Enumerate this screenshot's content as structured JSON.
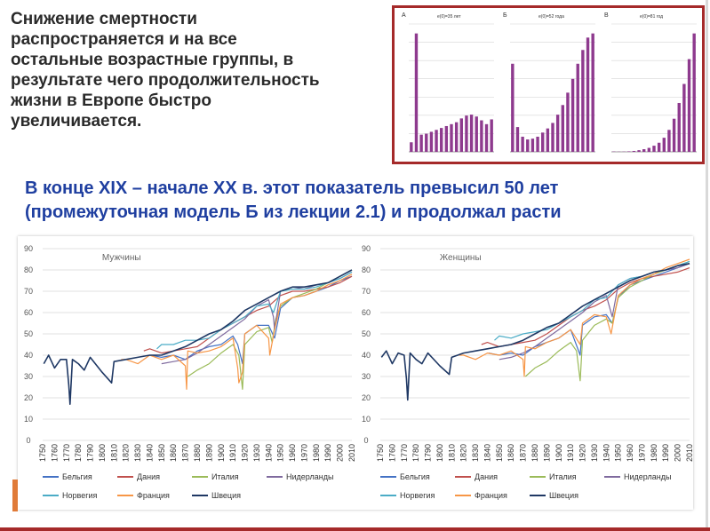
{
  "slide": {
    "heading": "Снижение смертности\nраспространяется и на все\nостальные возрастные группы, в\nрезультате чего продолжительность\nжизни в Европе быстро\nувеличивается.",
    "subheading": "В конце XIX – начале XX в. этот показатель превысил 50 лет\n(промежуточная модель Б из лекции 2.1) и продолжал расти"
  },
  "colors": {
    "inset_border": "#a52a2a",
    "bar": "#8e3a8e",
    "heading": "#2a2a2a",
    "subheading": "#1f3fa0"
  },
  "inset": {
    "panels": [
      {
        "letter": "А",
        "title": "e(0)=35 лет",
        "bars": [
          500,
          6200,
          900,
          950,
          1050,
          1150,
          1250,
          1350,
          1450,
          1550,
          1750,
          1900,
          1950,
          1850,
          1650,
          1450,
          1700
        ]
      },
      {
        "letter": "Б",
        "title": "e(0)=52 года",
        "bars": [
          3200,
          900,
          550,
          450,
          480,
          550,
          700,
          850,
          1050,
          1350,
          1700,
          2150,
          2650,
          3200,
          3700,
          4150,
          4300
        ]
      },
      {
        "letter": "В",
        "title": "e(0)=81 год",
        "bars": [
          40,
          25,
          30,
          60,
          110,
          200,
          320,
          480,
          740,
          1100,
          1700,
          2650,
          4000,
          5900,
          8200,
          11200,
          14300
        ]
      }
    ]
  },
  "chart_data": [
    {
      "type": "line",
      "title": "Мужчины",
      "xlim": [
        1750,
        2010
      ],
      "ylim": [
        0,
        90
      ],
      "y_ticks": [
        0,
        10,
        20,
        30,
        40,
        50,
        60,
        70,
        80,
        90
      ],
      "x_ticks": [
        "1750",
        "1760",
        "1770",
        "1780",
        "1790",
        "1800",
        "1810",
        "1820",
        "1830",
        "1840",
        "1850",
        "1860",
        "1870",
        "1880",
        "1890",
        "1900",
        "1910",
        "1920",
        "1930",
        "1940",
        "1950",
        "1960",
        "1970",
        "1980",
        "1990",
        "2000",
        "2010"
      ],
      "legend": [
        "Бельгия",
        "Дания",
        "Италия",
        "Нидерланды",
        "Норвегия",
        "Франция",
        "Швеция"
      ],
      "series": [
        {
          "name": "Бельгия",
          "color": "#4472c4",
          "x": [
            1841,
            1850,
            1860,
            1870,
            1880,
            1890,
            1900,
            1910,
            1914,
            1918,
            1920,
            1930,
            1940,
            1945,
            1950,
            1960,
            1970,
            1980,
            1990,
            2000,
            2010
          ],
          "y": [
            40,
            39,
            40,
            38,
            42,
            44,
            45,
            49,
            45,
            36,
            50,
            54,
            54,
            48,
            62,
            67,
            68,
            70,
            72,
            75,
            77
          ]
        },
        {
          "name": "Дания",
          "color": "#c0504d",
          "x": [
            1835,
            1840,
            1850,
            1860,
            1870,
            1880,
            1890,
            1900,
            1910,
            1920,
            1930,
            1940,
            1950,
            1960,
            1970,
            1980,
            1990,
            2000,
            2010
          ],
          "y": [
            42,
            43,
            41,
            42,
            43,
            44,
            48,
            52,
            55,
            58,
            61,
            63,
            68,
            70,
            70,
            71,
            72,
            74,
            77
          ]
        },
        {
          "name": "Италия",
          "color": "#9bbb59",
          "x": [
            1872,
            1880,
            1890,
            1900,
            1910,
            1915,
            1918,
            1920,
            1930,
            1940,
            1943,
            1946,
            1950,
            1960,
            1970,
            1980,
            1990,
            2000,
            2010
          ],
          "y": [
            30,
            33,
            36,
            41,
            45,
            40,
            24,
            45,
            51,
            53,
            46,
            57,
            63,
            67,
            69,
            71,
            74,
            77,
            80
          ]
        },
        {
          "name": "Нидерланды",
          "color": "#7f6a9e",
          "x": [
            1850,
            1860,
            1870,
            1880,
            1890,
            1900,
            1910,
            1920,
            1930,
            1940,
            1944,
            1945,
            1950,
            1960,
            1970,
            1980,
            1990,
            2000,
            2010
          ],
          "y": [
            36,
            37,
            38,
            41,
            45,
            49,
            53,
            57,
            63,
            66,
            58,
            52,
            70,
            72,
            71,
            73,
            74,
            76,
            79
          ]
        },
        {
          "name": "Норвегия",
          "color": "#4bacc6",
          "x": [
            1846,
            1850,
            1860,
            1870,
            1880,
            1890,
            1900,
            1910,
            1920,
            1930,
            1940,
            1944,
            1950,
            1960,
            1970,
            1980,
            1990,
            2000,
            2010
          ],
          "y": [
            43,
            45,
            45,
            47,
            47,
            48,
            52,
            55,
            58,
            63,
            64,
            60,
            70,
            71,
            71,
            72,
            74,
            76,
            79
          ]
        },
        {
          "name": "Франция",
          "color": "#f79646",
          "x": [
            1816,
            1820,
            1830,
            1840,
            1850,
            1860,
            1870,
            1871,
            1872,
            1880,
            1890,
            1900,
            1910,
            1914,
            1915,
            1918,
            1920,
            1930,
            1940,
            1941,
            1945,
            1950,
            1960,
            1970,
            1980,
            1990,
            2000,
            2010
          ],
          "y": [
            38,
            38,
            36,
            40,
            38,
            40,
            35,
            24,
            42,
            41,
            42,
            44,
            48,
            34,
            27,
            32,
            50,
            54,
            48,
            40,
            52,
            64,
            67,
            68,
            70,
            73,
            75,
            78
          ]
        },
        {
          "name": "Швеция",
          "color": "#1f3864",
          "x": [
            1751,
            1755,
            1760,
            1765,
            1770,
            1772,
            1773,
            1775,
            1780,
            1785,
            1790,
            1800,
            1808,
            1810,
            1820,
            1830,
            1840,
            1850,
            1860,
            1870,
            1880,
            1890,
            1900,
            1910,
            1920,
            1930,
            1940,
            1950,
            1960,
            1970,
            1980,
            1990,
            2000,
            2010
          ],
          "y": [
            36,
            40,
            34,
            38,
            38,
            26,
            17,
            38,
            36,
            33,
            39,
            32,
            27,
            37,
            38,
            39,
            40,
            40,
            42,
            44,
            47,
            50,
            52,
            56,
            61,
            64,
            67,
            70,
            72,
            72,
            73,
            74,
            77,
            80
          ]
        }
      ]
    },
    {
      "type": "line",
      "title": "Женщины",
      "xlim": [
        1750,
        2010
      ],
      "ylim": [
        0,
        90
      ],
      "y_ticks": [
        0,
        10,
        20,
        30,
        40,
        50,
        60,
        70,
        80,
        90
      ],
      "x_ticks": [
        "1750",
        "1760",
        "1770",
        "1780",
        "1790",
        "1800",
        "1810",
        "1820",
        "1830",
        "1840",
        "1850",
        "1860",
        "1870",
        "1880",
        "1890",
        "1900",
        "1910",
        "1920",
        "1930",
        "1940",
        "1950",
        "1960",
        "1970",
        "1980",
        "1990",
        "2000",
        "2010"
      ],
      "legend": [
        "Бельгия",
        "Дания",
        "Италия",
        "Нидерланды",
        "Норвегия",
        "Франция",
        "Швеция"
      ],
      "series": [
        {
          "name": "Бельгия",
          "color": "#4472c4",
          "x": [
            1841,
            1850,
            1860,
            1870,
            1880,
            1890,
            1900,
            1910,
            1918,
            1920,
            1930,
            1940,
            1945,
            1950,
            1960,
            1970,
            1980,
            1990,
            2000,
            2010
          ],
          "y": [
            41,
            40,
            41,
            40,
            44,
            46,
            48,
            52,
            40,
            54,
            58,
            59,
            55,
            67,
            73,
            75,
            77,
            79,
            81,
            83
          ]
        },
        {
          "name": "Дания",
          "color": "#c0504d",
          "x": [
            1835,
            1840,
            1850,
            1860,
            1870,
            1880,
            1890,
            1900,
            1910,
            1920,
            1930,
            1940,
            1950,
            1960,
            1970,
            1980,
            1990,
            2000,
            2010
          ],
          "y": [
            45,
            46,
            44,
            45,
            46,
            47,
            50,
            54,
            58,
            61,
            63,
            66,
            71,
            74,
            76,
            77,
            78,
            79,
            81
          ]
        },
        {
          "name": "Италия",
          "color": "#9bbb59",
          "x": [
            1872,
            1880,
            1890,
            1900,
            1910,
            1915,
            1918,
            1920,
            1930,
            1940,
            1945,
            1950,
            1960,
            1970,
            1980,
            1990,
            2000,
            2010
          ],
          "y": [
            30,
            34,
            37,
            42,
            46,
            42,
            28,
            47,
            54,
            57,
            55,
            67,
            72,
            75,
            78,
            80,
            82,
            84
          ]
        },
        {
          "name": "Нидерланды",
          "color": "#7f6a9e",
          "x": [
            1850,
            1860,
            1870,
            1880,
            1890,
            1900,
            1910,
            1920,
            1930,
            1940,
            1945,
            1950,
            1960,
            1970,
            1980,
            1990,
            2000,
            2010
          ],
          "y": [
            38,
            39,
            41,
            44,
            48,
            52,
            56,
            60,
            65,
            68,
            58,
            73,
            76,
            77,
            79,
            80,
            81,
            83
          ]
        },
        {
          "name": "Норвегия",
          "color": "#4bacc6",
          "x": [
            1846,
            1850,
            1860,
            1870,
            1880,
            1890,
            1900,
            1910,
            1920,
            1930,
            1940,
            1950,
            1960,
            1970,
            1980,
            1990,
            2000,
            2010
          ],
          "y": [
            47,
            49,
            48,
            50,
            51,
            52,
            55,
            58,
            61,
            66,
            67,
            73,
            76,
            77,
            79,
            80,
            82,
            84
          ]
        },
        {
          "name": "Франция",
          "color": "#f79646",
          "x": [
            1816,
            1820,
            1830,
            1840,
            1850,
            1860,
            1870,
            1871,
            1872,
            1880,
            1890,
            1900,
            1910,
            1918,
            1920,
            1930,
            1940,
            1944,
            1950,
            1960,
            1970,
            1980,
            1990,
            2000,
            2010
          ],
          "y": [
            40,
            40,
            38,
            41,
            40,
            42,
            38,
            30,
            44,
            43,
            46,
            48,
            52,
            45,
            55,
            59,
            58,
            50,
            68,
            73,
            76,
            78,
            81,
            83,
            85
          ]
        },
        {
          "name": "Швеция",
          "color": "#1f3864",
          "x": [
            1751,
            1755,
            1760,
            1765,
            1770,
            1772,
            1773,
            1775,
            1780,
            1785,
            1790,
            1800,
            1808,
            1810,
            1820,
            1830,
            1840,
            1850,
            1860,
            1870,
            1880,
            1890,
            1900,
            1910,
            1920,
            1930,
            1940,
            1950,
            1960,
            1970,
            1980,
            1990,
            2000,
            2010
          ],
          "y": [
            39,
            42,
            36,
            41,
            40,
            29,
            19,
            41,
            38,
            36,
            41,
            35,
            31,
            39,
            41,
            42,
            43,
            44,
            45,
            47,
            50,
            53,
            55,
            59,
            63,
            66,
            69,
            72,
            75,
            77,
            79,
            80,
            82,
            83
          ]
        }
      ]
    }
  ]
}
